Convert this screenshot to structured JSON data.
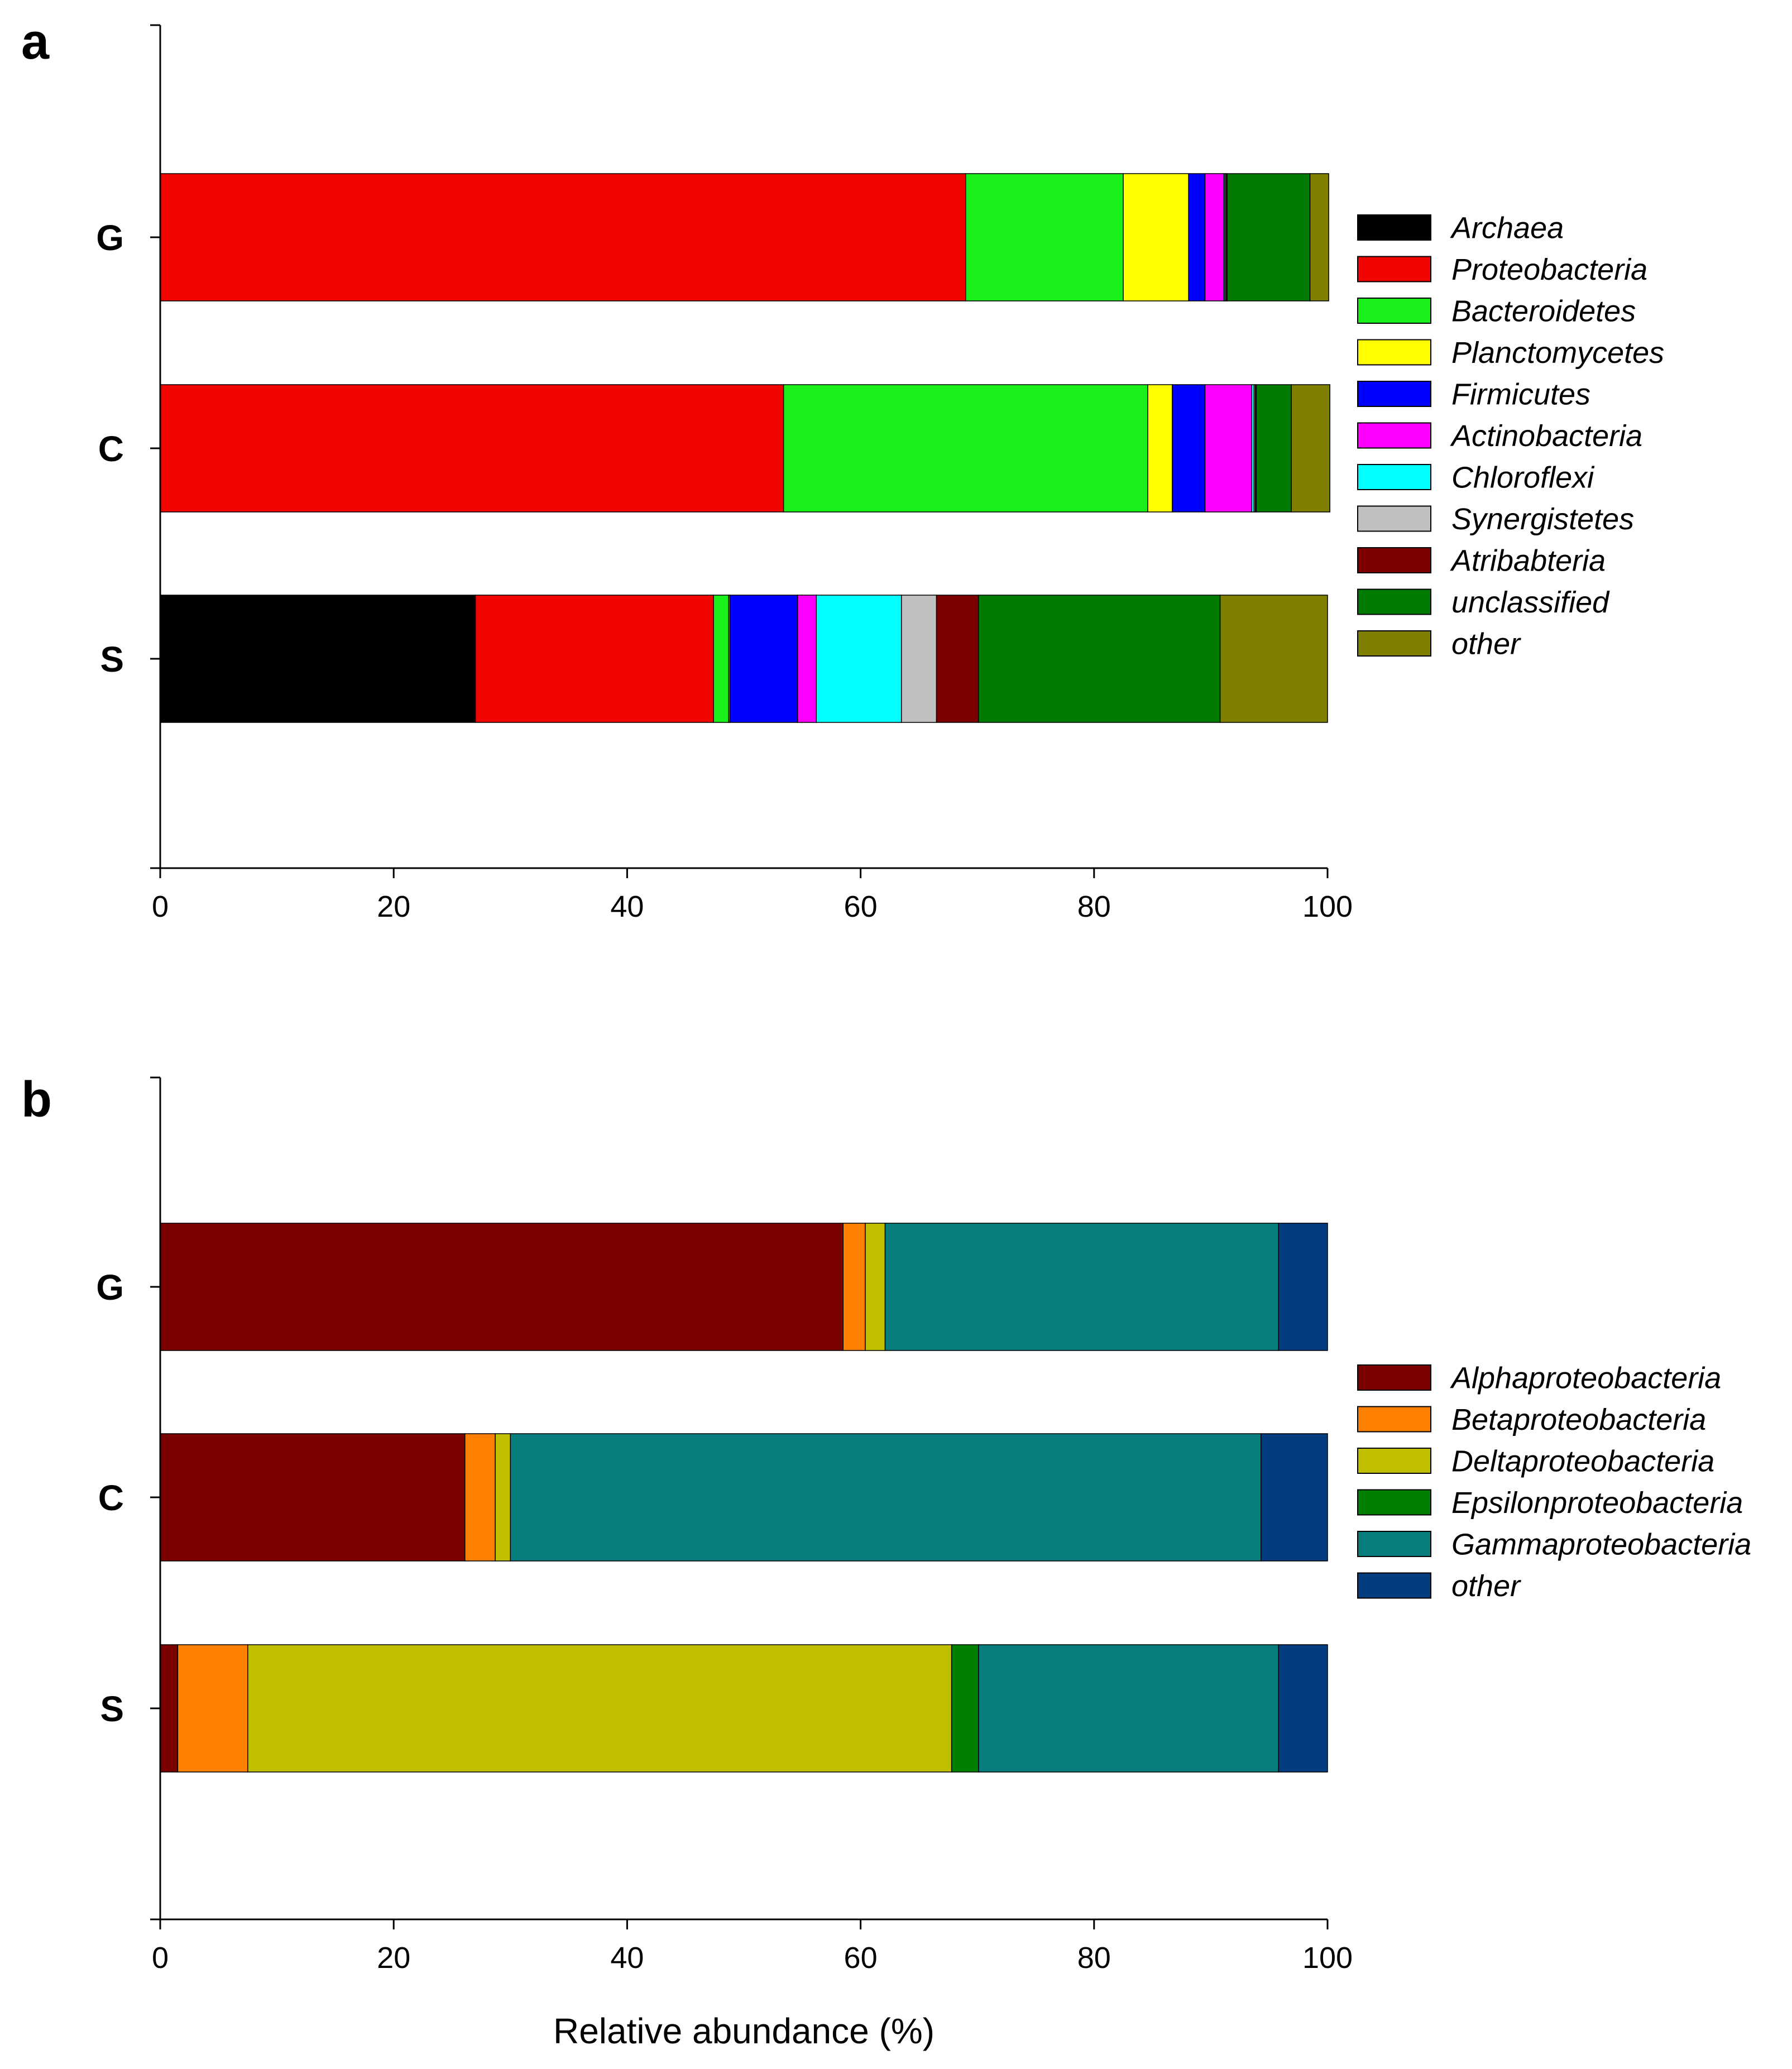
{
  "chart_data": [
    {
      "panel": "a",
      "type": "bar",
      "orientation": "horizontal",
      "stacked": true,
      "categories": [
        "G",
        "C",
        "S"
      ],
      "xlim": [
        0,
        100
      ],
      "xticks": [
        "0",
        "20",
        "40",
        "60",
        "80",
        "100"
      ],
      "xlabel": "",
      "legend_position": "right",
      "series": [
        {
          "name": "Archaea",
          "color": "#000000",
          "values": [
            0,
            0,
            27.0
          ]
        },
        {
          "name": "Proteobacteria",
          "color": "#F20500",
          "values": [
            69.0,
            53.4,
            20.4
          ]
        },
        {
          "name": "Bacteroidetes",
          "color": "#19F019",
          "values": [
            13.5,
            31.2,
            1.3
          ]
        },
        {
          "name": "Planctomycetes",
          "color": "#FFFF00",
          "values": [
            5.6,
            2.1,
            0.1
          ]
        },
        {
          "name": "Firmicutes",
          "color": "#0000FF",
          "values": [
            1.4,
            2.8,
            5.8
          ]
        },
        {
          "name": "Actinobacteria",
          "color": "#FF00FF",
          "values": [
            1.6,
            4.0,
            1.6
          ]
        },
        {
          "name": "Chloroflexi",
          "color": "#00FFFF",
          "values": [
            0.1,
            0.2,
            7.3
          ]
        },
        {
          "name": "Synergistetes",
          "color": "#C0C0C0",
          "values": [
            0.1,
            0.1,
            3.0
          ]
        },
        {
          "name": "Atribabteria",
          "color": "#7D0000",
          "values": [
            0.1,
            0.1,
            3.6
          ]
        },
        {
          "name": "unclassified",
          "color": "#007A00",
          "values": [
            7.1,
            3.0,
            20.7
          ]
        },
        {
          "name": "other",
          "color": "#808000",
          "values": [
            1.6,
            3.3,
            9.2
          ]
        }
      ]
    },
    {
      "panel": "b",
      "type": "bar",
      "orientation": "horizontal",
      "stacked": true,
      "categories": [
        "G",
        "C",
        "S"
      ],
      "xlim": [
        0,
        100
      ],
      "xticks": [
        "0",
        "20",
        "40",
        "60",
        "80",
        "100"
      ],
      "xlabel": "Relative abundance (%)",
      "legend_position": "right",
      "series": [
        {
          "name": "Alphaproteobacteria",
          "color": "#7B0000",
          "values": [
            58.5,
            26.1,
            1.5
          ]
        },
        {
          "name": "Betaproteobacteria",
          "color": "#FF8000",
          "values": [
            1.9,
            2.6,
            6.0
          ]
        },
        {
          "name": "Deltaproteobacteria",
          "color": "#BFBF00",
          "values": [
            1.7,
            1.3,
            60.3
          ]
        },
        {
          "name": "Epsilonproteobacteria",
          "color": "#008000",
          "values": [
            0.0,
            0.0,
            2.3
          ]
        },
        {
          "name": "Gammaproteobacteria",
          "color": "#087D7D",
          "values": [
            33.7,
            64.3,
            25.7
          ]
        },
        {
          "name": " other",
          "color": "#043D7F",
          "values": [
            4.2,
            5.7,
            4.2
          ]
        }
      ]
    }
  ],
  "panel_letters": [
    "a",
    "b"
  ]
}
